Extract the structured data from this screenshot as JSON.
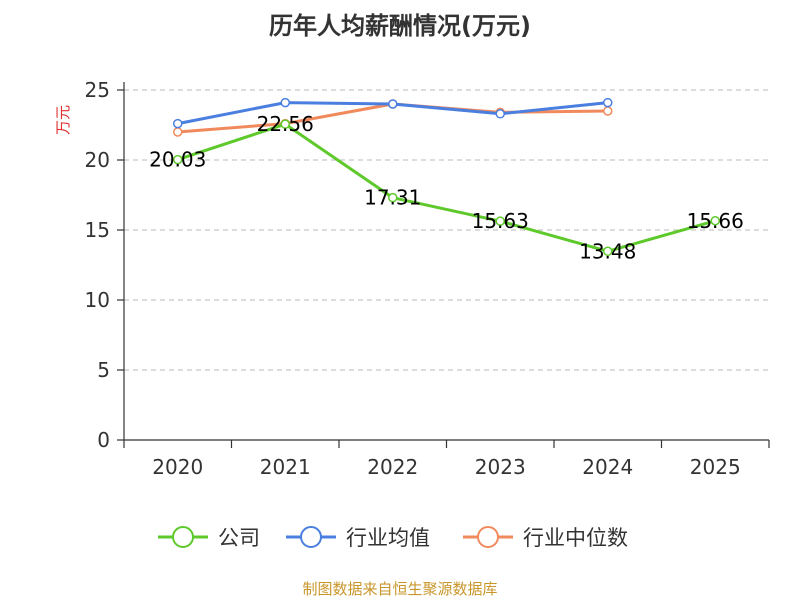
{
  "chart_data": {
    "type": "line",
    "title": "历年人均薪酬情况(万元)",
    "ylabel": "万元",
    "xlabel": "",
    "ylim": [
      0,
      25
    ],
    "yticks": [
      0,
      5,
      10,
      15,
      20,
      25
    ],
    "categories": [
      "2020",
      "2021",
      "2022",
      "2023",
      "2024",
      "2025"
    ],
    "grid": true,
    "legend_position": "bottom",
    "series": [
      {
        "name": "公司",
        "color": "#5ec92b",
        "values": [
          20.03,
          22.56,
          17.31,
          15.63,
          13.48,
          15.66
        ],
        "labels": [
          "20.03",
          "22.56",
          "17.31",
          "15.63",
          "13.48",
          "15.66"
        ]
      },
      {
        "name": "行业均值",
        "color": "#4a7fe0",
        "values": [
          22.6,
          24.1,
          24.0,
          23.3,
          24.1,
          null
        ]
      },
      {
        "name": "行业中位数",
        "color": "#f08a5d",
        "values": [
          22.0,
          22.6,
          24.0,
          23.4,
          23.5,
          null
        ]
      }
    ]
  },
  "source": "制图数据来自恒生聚源数据库"
}
